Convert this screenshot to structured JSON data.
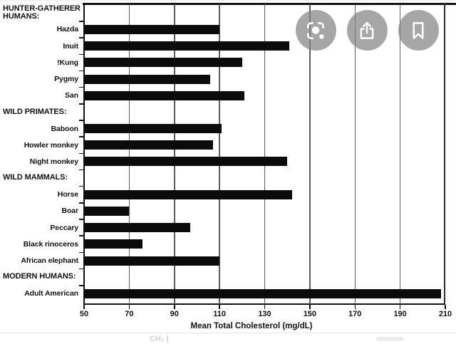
{
  "colors": {
    "bar": "#0b0b0b",
    "gridline": "#5e5e5e",
    "frame": "#121212",
    "overlay_button": "rgba(132,132,132,0.72)",
    "overlay_icon": "#ffffff"
  },
  "overlay": {
    "buttons": [
      {
        "icon": "lens-icon"
      },
      {
        "icon": "share-icon"
      },
      {
        "icon": "bookmark-icon"
      }
    ]
  },
  "chart_data": {
    "type": "bar",
    "orientation": "horizontal",
    "title": "",
    "xlabel": "Mean Total Cholesterol (mg/dL)",
    "ylabel": "",
    "xlim": [
      50,
      210
    ],
    "xticks": [
      50,
      70,
      90,
      110,
      130,
      150,
      170,
      190,
      210
    ],
    "grid": "vertical-gridlines",
    "legend": "none",
    "rows": [
      {
        "kind": "section",
        "label": "HUNTER-GATHERER\nHUMANS:"
      },
      {
        "kind": "bar",
        "label": "Hazda",
        "value": 110
      },
      {
        "kind": "bar",
        "label": "Inuit",
        "value": 141
      },
      {
        "kind": "bar",
        "label": "!Kung",
        "value": 120
      },
      {
        "kind": "bar",
        "label": "Pygmy",
        "value": 106
      },
      {
        "kind": "bar",
        "label": "San",
        "value": 121
      },
      {
        "kind": "section",
        "label": "WILD PRIMATES:"
      },
      {
        "kind": "bar",
        "label": "Baboon",
        "value": 111
      },
      {
        "kind": "bar",
        "label": "Howler monkey",
        "value": 107
      },
      {
        "kind": "bar",
        "label": "Night monkey",
        "value": 140
      },
      {
        "kind": "section",
        "label": "WILD MAMMALS:"
      },
      {
        "kind": "bar",
        "label": "Horse",
        "value": 142
      },
      {
        "kind": "bar",
        "label": "Boar",
        "value": 70
      },
      {
        "kind": "bar",
        "label": "Peccary",
        "value": 97
      },
      {
        "kind": "bar",
        "label": "Black rinoceros",
        "value": 76
      },
      {
        "kind": "bar",
        "label": "African elephant",
        "value": 110
      },
      {
        "kind": "section",
        "label": "MODERN HUMANS:"
      },
      {
        "kind": "bar",
        "label": "Adult American",
        "value": 208
      }
    ]
  },
  "footer": {
    "fragment_text": "CH₁  |"
  }
}
